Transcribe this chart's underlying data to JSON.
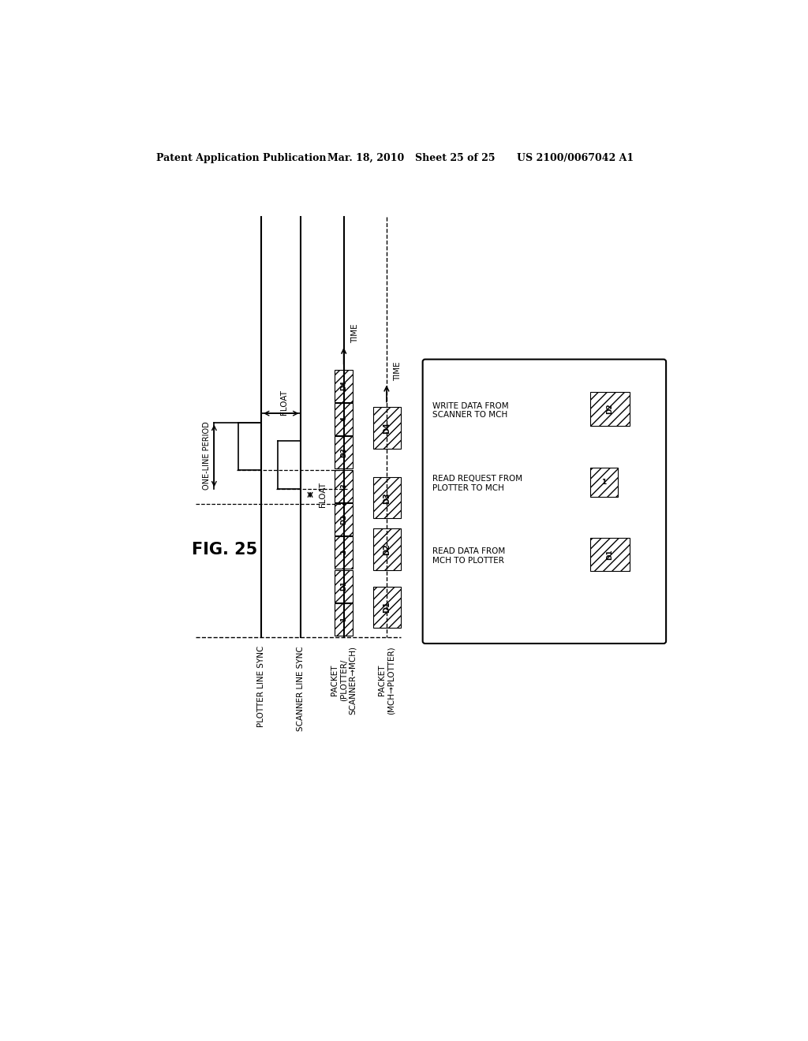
{
  "header_left": "Patent Application Publication",
  "header_mid": "Mar. 18, 2010  Sheet 25 of 25",
  "header_right": "US 2100/0067042 A1",
  "fig_label": "FIG. 25",
  "bg_color": "#ffffff"
}
